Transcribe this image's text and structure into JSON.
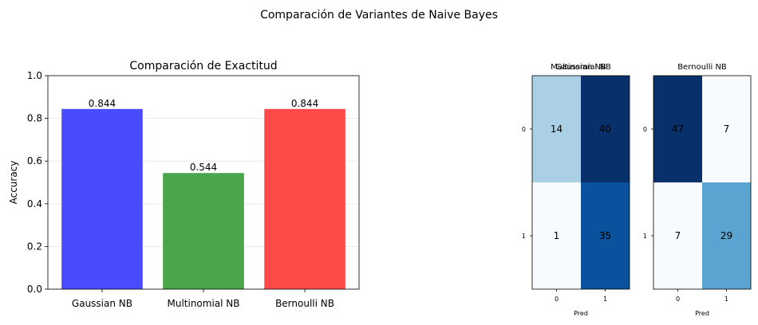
{
  "suptitle": "Comparación de Variantes de Naive Bayes",
  "chart_data": [
    {
      "type": "bar",
      "title": "Comparación de Exactitud",
      "ylabel": "Accuracy",
      "xlabel": "",
      "categories": [
        "Gaussian NB",
        "Multinomial NB",
        "Bernoulli NB"
      ],
      "values": [
        0.844,
        0.544,
        0.844
      ],
      "value_labels": [
        "0.844",
        "0.544",
        "0.844"
      ],
      "colors": [
        "#4a4aff",
        "#4aa64a",
        "#ff4a4a"
      ],
      "ylim": [
        0,
        1
      ],
      "yticks": [
        0.0,
        0.2,
        0.4,
        0.6,
        0.8,
        1.0
      ],
      "ytick_labels": [
        "0.0",
        "0.2",
        "0.4",
        "0.6",
        "0.8",
        "1.0"
      ],
      "grid": "y"
    },
    {
      "type": "heatmap",
      "title": "Gaussian NB",
      "title_overlap": "Multinomial NB",
      "xlabel": "Pred",
      "x_tick_labels": [
        "0",
        "1"
      ],
      "y_tick_labels": [
        "0",
        "1"
      ],
      "matrix": [
        [
          14,
          40
        ],
        [
          1,
          35
        ]
      ],
      "cell_labels": [
        [
          "14",
          "40"
        ],
        [
          "1",
          "35"
        ]
      ],
      "colormap": "Blues"
    },
    {
      "type": "heatmap",
      "title": "Bernoulli NB",
      "xlabel": "Pred",
      "x_tick_labels": [
        "0",
        "1"
      ],
      "y_tick_labels": [
        "0",
        "1"
      ],
      "matrix": [
        [
          47,
          7
        ],
        [
          7,
          29
        ]
      ],
      "cell_labels": [
        [
          "47",
          "7"
        ],
        [
          "7",
          "29"
        ]
      ],
      "colormap": "Blues"
    }
  ]
}
